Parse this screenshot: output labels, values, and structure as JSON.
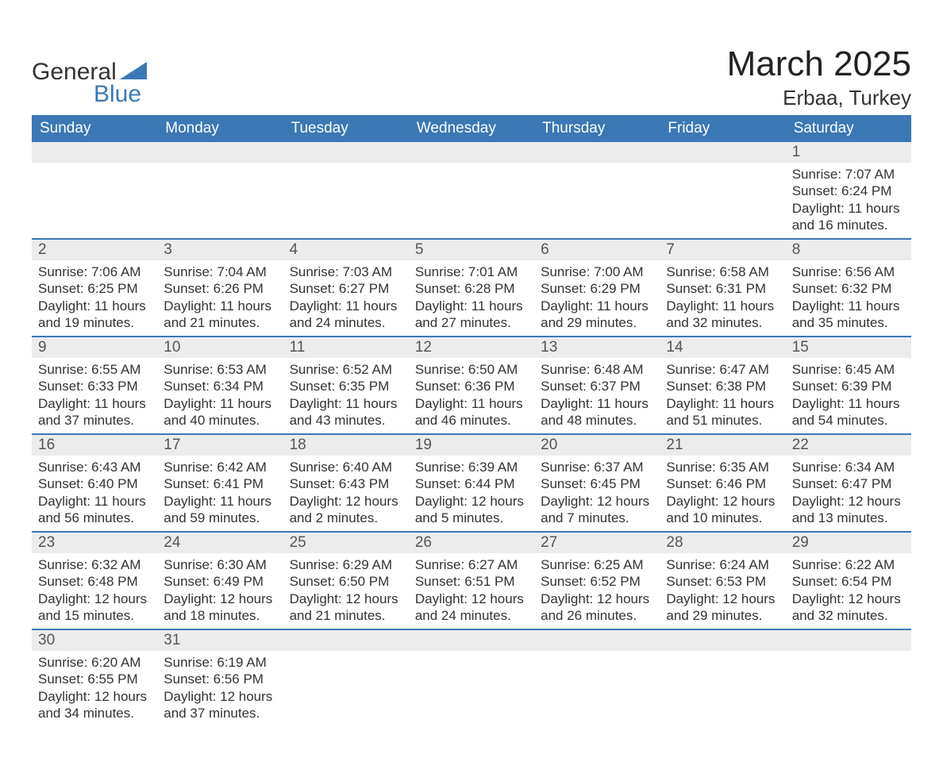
{
  "brand": {
    "word1": "General",
    "word2": "Blue",
    "accent_color": "#3b78b5"
  },
  "title": {
    "month": "March 2025",
    "location": "Erbaa, Turkey"
  },
  "colors": {
    "header_bg": "#3b78b5",
    "header_text": "#ffffff",
    "daynum_bg": "#ececec",
    "row_border": "#3b78b5",
    "body_text": "#333333",
    "page_bg": "#ffffff"
  },
  "calendar": {
    "columns": [
      "Sunday",
      "Monday",
      "Tuesday",
      "Wednesday",
      "Thursday",
      "Friday",
      "Saturday"
    ],
    "weeks": [
      [
        null,
        null,
        null,
        null,
        null,
        null,
        {
          "n": "1",
          "sunrise": "7:07 AM",
          "sunset": "6:24 PM",
          "dl1": "11 hours",
          "dl2": "and 16 minutes."
        }
      ],
      [
        {
          "n": "2",
          "sunrise": "7:06 AM",
          "sunset": "6:25 PM",
          "dl1": "11 hours",
          "dl2": "and 19 minutes."
        },
        {
          "n": "3",
          "sunrise": "7:04 AM",
          "sunset": "6:26 PM",
          "dl1": "11 hours",
          "dl2": "and 21 minutes."
        },
        {
          "n": "4",
          "sunrise": "7:03 AM",
          "sunset": "6:27 PM",
          "dl1": "11 hours",
          "dl2": "and 24 minutes."
        },
        {
          "n": "5",
          "sunrise": "7:01 AM",
          "sunset": "6:28 PM",
          "dl1": "11 hours",
          "dl2": "and 27 minutes."
        },
        {
          "n": "6",
          "sunrise": "7:00 AM",
          "sunset": "6:29 PM",
          "dl1": "11 hours",
          "dl2": "and 29 minutes."
        },
        {
          "n": "7",
          "sunrise": "6:58 AM",
          "sunset": "6:31 PM",
          "dl1": "11 hours",
          "dl2": "and 32 minutes."
        },
        {
          "n": "8",
          "sunrise": "6:56 AM",
          "sunset": "6:32 PM",
          "dl1": "11 hours",
          "dl2": "and 35 minutes."
        }
      ],
      [
        {
          "n": "9",
          "sunrise": "6:55 AM",
          "sunset": "6:33 PM",
          "dl1": "11 hours",
          "dl2": "and 37 minutes."
        },
        {
          "n": "10",
          "sunrise": "6:53 AM",
          "sunset": "6:34 PM",
          "dl1": "11 hours",
          "dl2": "and 40 minutes."
        },
        {
          "n": "11",
          "sunrise": "6:52 AM",
          "sunset": "6:35 PM",
          "dl1": "11 hours",
          "dl2": "and 43 minutes."
        },
        {
          "n": "12",
          "sunrise": "6:50 AM",
          "sunset": "6:36 PM",
          "dl1": "11 hours",
          "dl2": "and 46 minutes."
        },
        {
          "n": "13",
          "sunrise": "6:48 AM",
          "sunset": "6:37 PM",
          "dl1": "11 hours",
          "dl2": "and 48 minutes."
        },
        {
          "n": "14",
          "sunrise": "6:47 AM",
          "sunset": "6:38 PM",
          "dl1": "11 hours",
          "dl2": "and 51 minutes."
        },
        {
          "n": "15",
          "sunrise": "6:45 AM",
          "sunset": "6:39 PM",
          "dl1": "11 hours",
          "dl2": "and 54 minutes."
        }
      ],
      [
        {
          "n": "16",
          "sunrise": "6:43 AM",
          "sunset": "6:40 PM",
          "dl1": "11 hours",
          "dl2": "and 56 minutes."
        },
        {
          "n": "17",
          "sunrise": "6:42 AM",
          "sunset": "6:41 PM",
          "dl1": "11 hours",
          "dl2": "and 59 minutes."
        },
        {
          "n": "18",
          "sunrise": "6:40 AM",
          "sunset": "6:43 PM",
          "dl1": "12 hours",
          "dl2": "and 2 minutes."
        },
        {
          "n": "19",
          "sunrise": "6:39 AM",
          "sunset": "6:44 PM",
          "dl1": "12 hours",
          "dl2": "and 5 minutes."
        },
        {
          "n": "20",
          "sunrise": "6:37 AM",
          "sunset": "6:45 PM",
          "dl1": "12 hours",
          "dl2": "and 7 minutes."
        },
        {
          "n": "21",
          "sunrise": "6:35 AM",
          "sunset": "6:46 PM",
          "dl1": "12 hours",
          "dl2": "and 10 minutes."
        },
        {
          "n": "22",
          "sunrise": "6:34 AM",
          "sunset": "6:47 PM",
          "dl1": "12 hours",
          "dl2": "and 13 minutes."
        }
      ],
      [
        {
          "n": "23",
          "sunrise": "6:32 AM",
          "sunset": "6:48 PM",
          "dl1": "12 hours",
          "dl2": "and 15 minutes."
        },
        {
          "n": "24",
          "sunrise": "6:30 AM",
          "sunset": "6:49 PM",
          "dl1": "12 hours",
          "dl2": "and 18 minutes."
        },
        {
          "n": "25",
          "sunrise": "6:29 AM",
          "sunset": "6:50 PM",
          "dl1": "12 hours",
          "dl2": "and 21 minutes."
        },
        {
          "n": "26",
          "sunrise": "6:27 AM",
          "sunset": "6:51 PM",
          "dl1": "12 hours",
          "dl2": "and 24 minutes."
        },
        {
          "n": "27",
          "sunrise": "6:25 AM",
          "sunset": "6:52 PM",
          "dl1": "12 hours",
          "dl2": "and 26 minutes."
        },
        {
          "n": "28",
          "sunrise": "6:24 AM",
          "sunset": "6:53 PM",
          "dl1": "12 hours",
          "dl2": "and 29 minutes."
        },
        {
          "n": "29",
          "sunrise": "6:22 AM",
          "sunset": "6:54 PM",
          "dl1": "12 hours",
          "dl2": "and 32 minutes."
        }
      ],
      [
        {
          "n": "30",
          "sunrise": "6:20 AM",
          "sunset": "6:55 PM",
          "dl1": "12 hours",
          "dl2": "and 34 minutes."
        },
        {
          "n": "31",
          "sunrise": "6:19 AM",
          "sunset": "6:56 PM",
          "dl1": "12 hours",
          "dl2": "and 37 minutes."
        },
        null,
        null,
        null,
        null,
        null
      ]
    ],
    "labels": {
      "sunrise": "Sunrise: ",
      "sunset": "Sunset: ",
      "daylight": "Daylight: "
    }
  }
}
